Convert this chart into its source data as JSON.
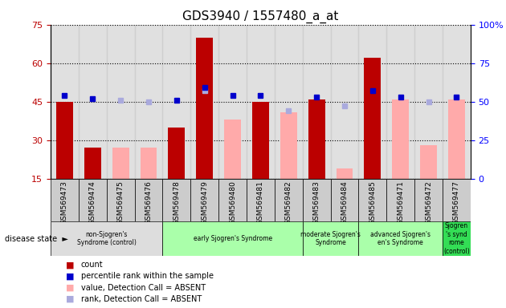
{
  "title": "GDS3940 / 1557480_a_at",
  "samples": [
    "GSM569473",
    "GSM569474",
    "GSM569475",
    "GSM569476",
    "GSM569478",
    "GSM569479",
    "GSM569480",
    "GSM569481",
    "GSM569482",
    "GSM569483",
    "GSM569484",
    "GSM569485",
    "GSM569471",
    "GSM569472",
    "GSM569477"
  ],
  "count_values": [
    45,
    27,
    null,
    null,
    35,
    70,
    null,
    45,
    null,
    46,
    null,
    62,
    null,
    null,
    null
  ],
  "percentile_values": [
    54,
    52,
    null,
    null,
    51,
    59,
    54,
    54,
    null,
    53,
    null,
    57,
    53,
    null,
    53
  ],
  "absent_value_bars": [
    null,
    null,
    27,
    27,
    null,
    null,
    38,
    null,
    41,
    null,
    19,
    null,
    46,
    28,
    46
  ],
  "absent_rank_dots": [
    null,
    null,
    51,
    50,
    null,
    57,
    null,
    null,
    44,
    null,
    47,
    null,
    null,
    50,
    53
  ],
  "disease_groups": [
    {
      "label": "non-Sjogren's\nSyndrome (control)",
      "start": 0,
      "end": 3,
      "color": "#dddddd"
    },
    {
      "label": "early Sjogren's Syndrome",
      "start": 4,
      "end": 8,
      "color": "#aaffaa"
    },
    {
      "label": "moderate Sjogren's\nSyndrome",
      "start": 9,
      "end": 10,
      "color": "#aaffaa"
    },
    {
      "label": "advanced Sjogren's Syndrome",
      "start": 11,
      "end": 13,
      "color": "#aaffaa"
    },
    {
      "label": "Sjogren\n's synd\nrome\n(control)",
      "start": 14,
      "end": 14,
      "color": "#00cc44"
    }
  ],
  "ylim_left": [
    15,
    75
  ],
  "ylim_right": [
    0,
    100
  ],
  "yticks_left": [
    15,
    30,
    45,
    60,
    75
  ],
  "yticks_right": [
    0,
    25,
    50,
    75,
    100
  ],
  "bar_width": 0.6,
  "count_color": "#bb0000",
  "percentile_color": "#0000cc",
  "absent_value_color": "#ffaaaa",
  "absent_rank_color": "#aaaadd",
  "col_bg_color": "#cccccc"
}
